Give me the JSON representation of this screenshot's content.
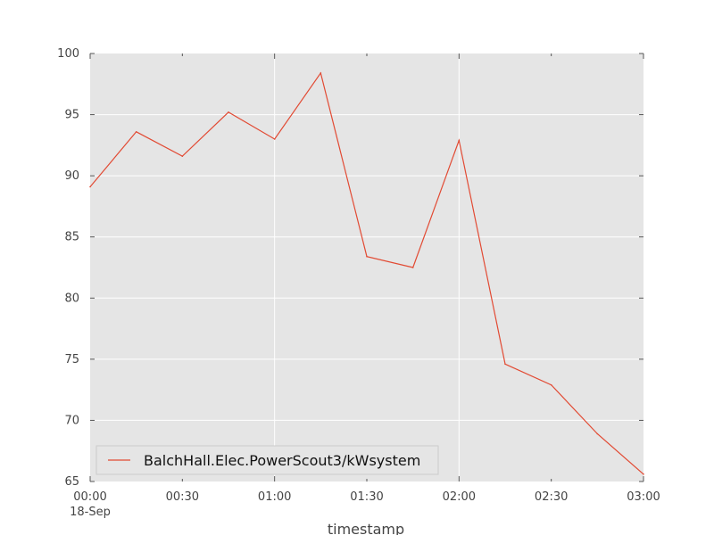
{
  "chart_data": {
    "type": "line",
    "title": "",
    "xlabel": "timestamp",
    "ylabel": "",
    "x": [
      "00:00",
      "00:15",
      "00:30",
      "00:45",
      "01:00",
      "01:15",
      "01:30",
      "01:45",
      "02:00",
      "02:15",
      "02:30",
      "02:45",
      "03:00"
    ],
    "x_date": "18-Sep",
    "xlim": [
      "00:00",
      "03:00"
    ],
    "x_ticks": [
      "00:00",
      "00:30",
      "01:00",
      "01:30",
      "02:00",
      "02:30",
      "03:00"
    ],
    "ylim": [
      65,
      100
    ],
    "y_ticks": [
      "65",
      "70",
      "75",
      "80",
      "85",
      "90",
      "95",
      "100"
    ],
    "grid": true,
    "legend_position": "lower-left",
    "series": [
      {
        "name": "BalchHall.Elec.PowerScout3/kWsystem",
        "color": "#e24a33",
        "values": [
          89.1,
          93.6,
          91.6,
          95.2,
          93.0,
          98.4,
          83.4,
          82.5,
          92.9,
          74.6,
          72.9,
          68.9,
          65.6
        ]
      }
    ]
  },
  "colors": {
    "plot_background": "#e5e5e5",
    "grid": "#ffffff",
    "axes_edge": "#bcbcbc",
    "text": "#444444"
  }
}
